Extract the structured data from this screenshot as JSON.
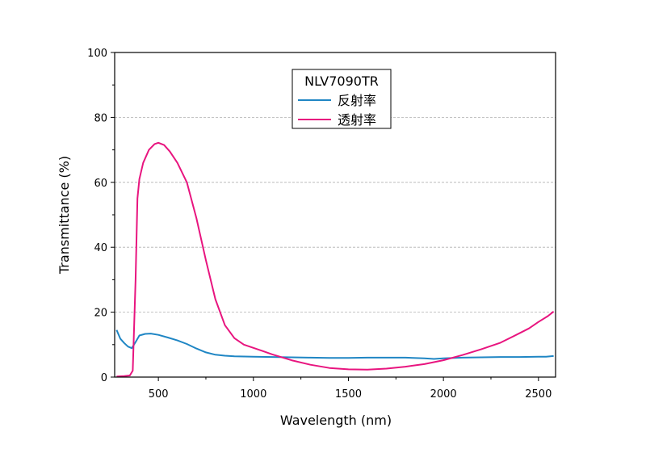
{
  "chart_data": {
    "type": "line",
    "xlabel": "Wavelength (nm)",
    "ylabel": "Transmittance (%)",
    "xlim": [
      270,
      2590
    ],
    "ylim": [
      0,
      100
    ],
    "xticks": [
      500,
      1000,
      1500,
      2000,
      2500
    ],
    "yticks": [
      0,
      20,
      40,
      60,
      80,
      100
    ],
    "grid": "horizontal dashed",
    "legend": {
      "title": "NLV7090TR",
      "placement": "top-center"
    },
    "series": [
      {
        "name": "反射率",
        "color": "#1f86c4",
        "points": [
          [
            280,
            14.5
          ],
          [
            300,
            11.8
          ],
          [
            320,
            10.5
          ],
          [
            340,
            9.4
          ],
          [
            360,
            8.9
          ],
          [
            380,
            10.8
          ],
          [
            400,
            12.8
          ],
          [
            430,
            13.3
          ],
          [
            460,
            13.4
          ],
          [
            500,
            13.0
          ],
          [
            550,
            12.2
          ],
          [
            600,
            11.3
          ],
          [
            650,
            10.2
          ],
          [
            700,
            8.8
          ],
          [
            750,
            7.6
          ],
          [
            800,
            6.9
          ],
          [
            850,
            6.6
          ],
          [
            900,
            6.4
          ],
          [
            1000,
            6.3
          ],
          [
            1100,
            6.2
          ],
          [
            1200,
            6.1
          ],
          [
            1300,
            6.0
          ],
          [
            1400,
            5.9
          ],
          [
            1500,
            5.9
          ],
          [
            1600,
            6.0
          ],
          [
            1700,
            6.0
          ],
          [
            1800,
            6.0
          ],
          [
            1900,
            5.8
          ],
          [
            1950,
            5.6
          ],
          [
            2000,
            5.8
          ],
          [
            2100,
            6.0
          ],
          [
            2200,
            6.1
          ],
          [
            2300,
            6.2
          ],
          [
            2400,
            6.2
          ],
          [
            2500,
            6.3
          ],
          [
            2540,
            6.3
          ],
          [
            2580,
            6.5
          ]
        ]
      },
      {
        "name": "透射率",
        "color": "#e8157f",
        "points": [
          [
            280,
            0.2
          ],
          [
            320,
            0.3
          ],
          [
            350,
            0.5
          ],
          [
            365,
            2.0
          ],
          [
            380,
            30.0
          ],
          [
            390,
            55.0
          ],
          [
            400,
            61.0
          ],
          [
            420,
            66.0
          ],
          [
            450,
            70.0
          ],
          [
            480,
            71.8
          ],
          [
            500,
            72.2
          ],
          [
            530,
            71.5
          ],
          [
            560,
            69.5
          ],
          [
            600,
            66.0
          ],
          [
            650,
            60.0
          ],
          [
            700,
            49.0
          ],
          [
            750,
            36.0
          ],
          [
            800,
            24.0
          ],
          [
            850,
            16.0
          ],
          [
            900,
            12.0
          ],
          [
            950,
            10.0
          ],
          [
            1000,
            9.0
          ],
          [
            1050,
            8.0
          ],
          [
            1100,
            7.0
          ],
          [
            1200,
            5.2
          ],
          [
            1300,
            3.8
          ],
          [
            1400,
            2.8
          ],
          [
            1500,
            2.4
          ],
          [
            1600,
            2.3
          ],
          [
            1700,
            2.6
          ],
          [
            1800,
            3.2
          ],
          [
            1900,
            4.0
          ],
          [
            2000,
            5.2
          ],
          [
            2100,
            6.8
          ],
          [
            2200,
            8.6
          ],
          [
            2300,
            10.6
          ],
          [
            2400,
            13.5
          ],
          [
            2450,
            15.0
          ],
          [
            2500,
            17.0
          ],
          [
            2550,
            18.8
          ],
          [
            2580,
            20.2
          ]
        ]
      }
    ]
  }
}
